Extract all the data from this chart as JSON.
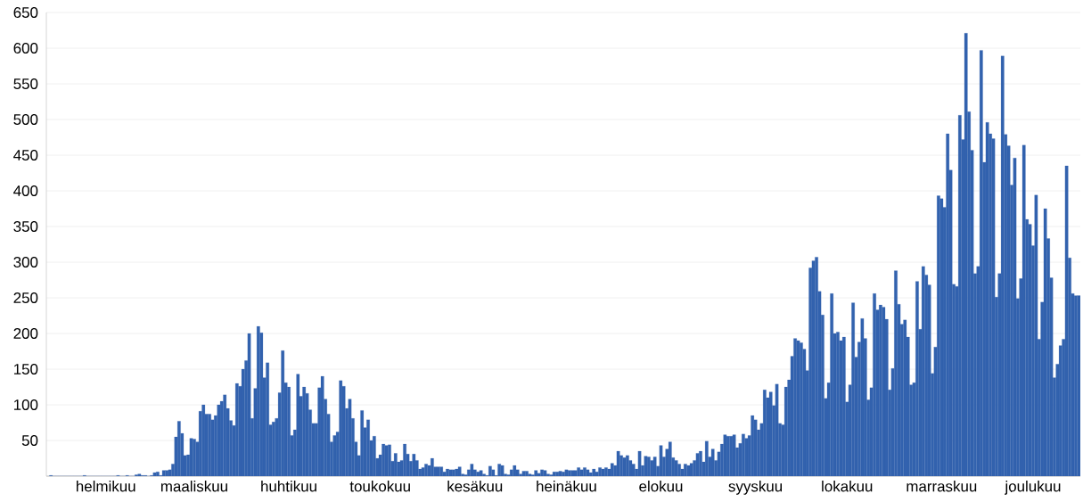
{
  "chart_data": {
    "type": "bar",
    "color": "#3262ae",
    "grid": "y",
    "ylim": [
      0,
      650
    ],
    "yticks": [
      50,
      100,
      150,
      200,
      250,
      300,
      350,
      400,
      450,
      500,
      550,
      600,
      650
    ],
    "categories": [
      null,
      null,
      null,
      null,
      null,
      null,
      null,
      null,
      null,
      null,
      null,
      null,
      null,
      null,
      null,
      null,
      null,
      null,
      "helmikuu",
      null,
      null,
      null,
      null,
      null,
      null,
      null,
      null,
      null,
      null,
      null,
      null,
      null,
      null,
      null,
      null,
      null,
      null,
      null,
      null,
      null,
      null,
      null,
      null,
      null,
      null,
      null,
      null,
      "maaliskuu",
      null,
      null,
      null,
      null,
      null,
      null,
      null,
      null,
      null,
      null,
      null,
      null,
      null,
      null,
      null,
      null,
      null,
      null,
      null,
      null,
      null,
      null,
      null,
      null,
      null,
      null,
      null,
      null,
      null,
      null,
      "huhtikuu",
      null,
      null,
      null,
      null,
      null,
      null,
      null,
      null,
      null,
      null,
      null,
      null,
      null,
      null,
      null,
      null,
      null,
      null,
      null,
      null,
      null,
      null,
      null,
      null,
      null,
      null,
      null,
      null,
      null,
      "toukokuu",
      null,
      null,
      null,
      null,
      null,
      null,
      null,
      null,
      null,
      null,
      null,
      null,
      null,
      null,
      null,
      null,
      null,
      null,
      null,
      null,
      null,
      null,
      null,
      null,
      null,
      null,
      null,
      null,
      null,
      null,
      "kesäkuu",
      null,
      null,
      null,
      null,
      null,
      null,
      null,
      null,
      null,
      null,
      null,
      null,
      null,
      null,
      null,
      null,
      null,
      null,
      null,
      null,
      null,
      null,
      null,
      null,
      null,
      null,
      null,
      null,
      null,
      "heinäkuu",
      null,
      null,
      null,
      null,
      null,
      null,
      null,
      null,
      null,
      null,
      null,
      null,
      null,
      null,
      null,
      null,
      null,
      null,
      null,
      null,
      null,
      null,
      null,
      null,
      null,
      null,
      null,
      null,
      null,
      null,
      "elokuu",
      null,
      null,
      null,
      null,
      null,
      null,
      null,
      null,
      null,
      null,
      null,
      null,
      null,
      null,
      null,
      null,
      null,
      null,
      null,
      null,
      null,
      null,
      null,
      null,
      null,
      null,
      null,
      null,
      null,
      null,
      "syyskuu",
      null,
      null,
      null,
      null,
      null,
      null,
      null,
      null,
      null,
      null,
      null,
      null,
      null,
      null,
      null,
      null,
      null,
      null,
      null,
      null,
      null,
      null,
      null,
      null,
      null,
      null,
      null,
      null,
      null,
      "lokakuu",
      null,
      null,
      null,
      null,
      null,
      null,
      null,
      null,
      null,
      null,
      null,
      null,
      null,
      null,
      null,
      null,
      null,
      null,
      null,
      null,
      null,
      null,
      null,
      null,
      null,
      null,
      null,
      null,
      null,
      null,
      "marraskuu",
      null,
      null,
      null,
      null,
      null,
      null,
      null,
      null,
      null,
      null,
      null,
      null,
      null,
      null,
      null,
      null,
      null,
      null,
      null,
      null,
      null,
      null,
      null,
      null,
      null,
      null,
      null,
      null,
      null,
      "joulukuu",
      null,
      null,
      null,
      null,
      null,
      null,
      null,
      null,
      null,
      null,
      null,
      null,
      null,
      null,
      null
    ],
    "values": [
      1,
      0,
      0,
      0,
      0,
      0,
      0,
      0,
      0,
      0,
      0,
      1,
      0,
      0,
      0,
      0,
      0,
      0,
      0,
      0,
      0,
      0,
      1,
      0,
      0,
      1,
      0,
      0,
      2,
      3,
      1,
      1,
      0,
      1,
      5,
      6,
      1,
      8,
      8,
      9,
      17,
      55,
      77,
      60,
      29,
      30,
      53,
      52,
      48,
      91,
      100,
      87,
      87,
      79,
      85,
      100,
      105,
      114,
      95,
      78,
      71,
      130,
      126,
      150,
      162,
      200,
      81,
      123,
      210,
      201,
      138,
      159,
      72,
      76,
      81,
      117,
      176,
      131,
      125,
      57,
      65,
      143,
      112,
      125,
      116,
      93,
      74,
      74,
      124,
      140,
      108,
      87,
      48,
      57,
      62,
      134,
      126,
      95,
      108,
      81,
      48,
      29,
      92,
      68,
      79,
      50,
      56,
      25,
      30,
      45,
      43,
      44,
      21,
      32,
      20,
      22,
      45,
      31,
      21,
      31,
      22,
      10,
      12,
      17,
      15,
      25,
      13,
      13,
      13,
      6,
      10,
      9,
      9,
      10,
      13,
      3,
      2,
      9,
      17,
      9,
      6,
      8,
      3,
      1,
      14,
      9,
      1,
      17,
      15,
      3,
      2,
      9,
      15,
      9,
      3,
      7,
      7,
      3,
      2,
      8,
      4,
      9,
      8,
      3,
      2,
      6,
      6,
      7,
      6,
      9,
      8,
      8,
      8,
      12,
      9,
      12,
      9,
      5,
      10,
      6,
      12,
      10,
      12,
      10,
      18,
      15,
      35,
      29,
      26,
      29,
      22,
      17,
      10,
      35,
      15,
      28,
      27,
      22,
      27,
      14,
      43,
      27,
      38,
      48,
      26,
      22,
      17,
      10,
      17,
      15,
      18,
      22,
      32,
      35,
      20,
      49,
      27,
      38,
      22,
      34,
      45,
      58,
      56,
      56,
      58,
      40,
      46,
      59,
      53,
      57,
      85,
      79,
      65,
      74,
      121,
      110,
      118,
      99,
      129,
      74,
      72,
      125,
      135,
      168,
      193,
      190,
      187,
      178,
      148,
      292,
      302,
      307,
      259,
      226,
      109,
      131,
      256,
      200,
      202,
      190,
      195,
      104,
      128,
      243,
      167,
      188,
      221,
      193,
      107,
      124,
      256,
      233,
      240,
      237,
      220,
      121,
      151,
      288,
      241,
      213,
      219,
      195,
      128,
      131,
      273,
      206,
      294,
      282,
      268,
      144,
      181,
      393,
      389,
      377,
      480,
      429,
      269,
      266,
      506,
      472,
      621,
      511,
      457,
      284,
      294,
      597,
      440,
      496,
      480,
      473,
      251,
      284,
      589,
      479,
      463,
      408,
      446,
      249,
      277,
      464,
      360,
      353,
      323,
      394,
      192,
      244,
      375,
      333,
      278,
      138,
      157,
      183,
      192,
      435,
      306,
      256,
      253,
      253
    ]
  }
}
